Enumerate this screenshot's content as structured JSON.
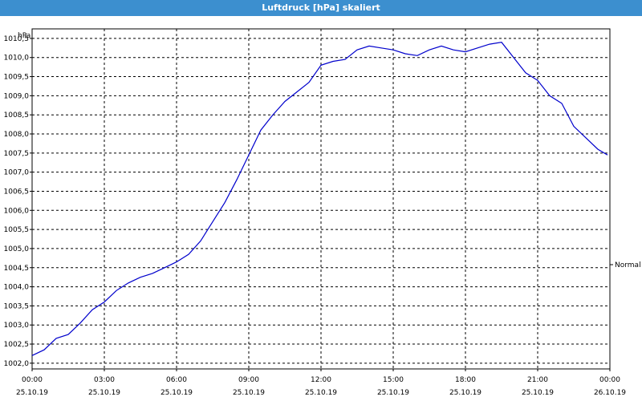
{
  "title": "Luftdruck [hPa] skaliert",
  "chart_data": {
    "type": "line",
    "title": "Luftdruck [hPa] skaliert",
    "ylabel": "hPa",
    "xlabel": "",
    "ylim": [
      1001.85,
      1010.75
    ],
    "xlim": [
      0,
      24
    ],
    "grid": true,
    "legend": "right",
    "y_ticks": [
      "1002,0",
      "1002,5",
      "1003,0",
      "1003,5",
      "1004,0",
      "1004,5",
      "1005,0",
      "1005,5",
      "1006,0",
      "1006,5",
      "1007,0",
      "1007,5",
      "1008,0",
      "1008,5",
      "1009,0",
      "1009,5",
      "1010,0",
      "1010,5"
    ],
    "x_ticks": [
      {
        "time": "00:00",
        "date": "25.10.19"
      },
      {
        "time": "03:00",
        "date": "25.10.19"
      },
      {
        "time": "06:00",
        "date": "25.10.19"
      },
      {
        "time": "09:00",
        "date": "25.10.19"
      },
      {
        "time": "12:00",
        "date": "25.10.19"
      },
      {
        "time": "15:00",
        "date": "25.10.19"
      },
      {
        "time": "18:00",
        "date": "25.10.19"
      },
      {
        "time": "21:00",
        "date": "25.10.19"
      },
      {
        "time": "00:00",
        "date": "26.10.19"
      }
    ],
    "series": [
      {
        "name": "Normal",
        "color": "#0000cc",
        "x": [
          0,
          0.5,
          1,
          1.5,
          2,
          2.5,
          3,
          3.5,
          4,
          4.5,
          5,
          5.5,
          6,
          6.5,
          7,
          7.5,
          8,
          8.5,
          9,
          9.5,
          10,
          10.5,
          11,
          11.5,
          12,
          12.5,
          13,
          13.5,
          14,
          14.5,
          15,
          15.5,
          16,
          16.5,
          17,
          17.5,
          18,
          18.5,
          19,
          19.5,
          20,
          20.5,
          21,
          21.5,
          22,
          22.5,
          23,
          23.5,
          23.9
        ],
        "values": [
          1002.2,
          1002.35,
          1002.65,
          1002.75,
          1003.05,
          1003.4,
          1003.6,
          1003.9,
          1004.1,
          1004.25,
          1004.35,
          1004.5,
          1004.65,
          1004.85,
          1005.2,
          1005.7,
          1006.2,
          1006.8,
          1007.45,
          1008.1,
          1008.5,
          1008.85,
          1009.1,
          1009.35,
          1009.8,
          1009.9,
          1009.95,
          1010.2,
          1010.3,
          1010.25,
          1010.2,
          1010.1,
          1010.05,
          1010.2,
          1010.3,
          1010.2,
          1010.15,
          1010.25,
          1010.35,
          1010.4,
          1010.0,
          1009.6,
          1009.4,
          1009.0,
          1008.8,
          1008.2,
          1007.9,
          1007.6,
          1007.45
        ]
      }
    ]
  }
}
